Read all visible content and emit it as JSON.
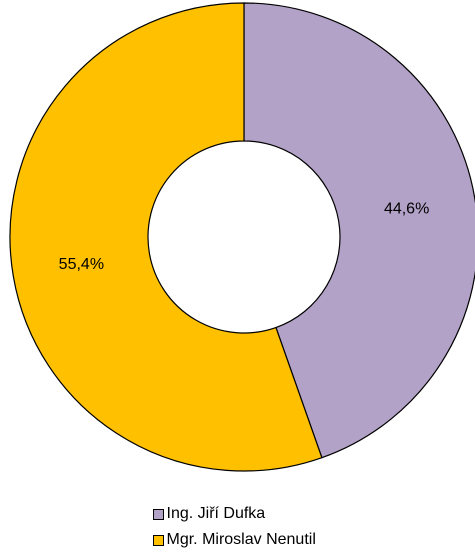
{
  "chart_data": {
    "type": "pie",
    "title": "",
    "variant": "donut",
    "slices": [
      {
        "name": "Ing. Jiří Dufka",
        "value": 44.6,
        "label": "44,6%",
        "color": "#B3A2C7"
      },
      {
        "name": "Mgr. Miroslav Nenutil",
        "value": 55.4,
        "label": "55,4%",
        "color": "#FFC000"
      }
    ],
    "legend_position": "bottom",
    "start_angle": "top",
    "direction": "clockwise",
    "stroke_color": "#000000"
  }
}
